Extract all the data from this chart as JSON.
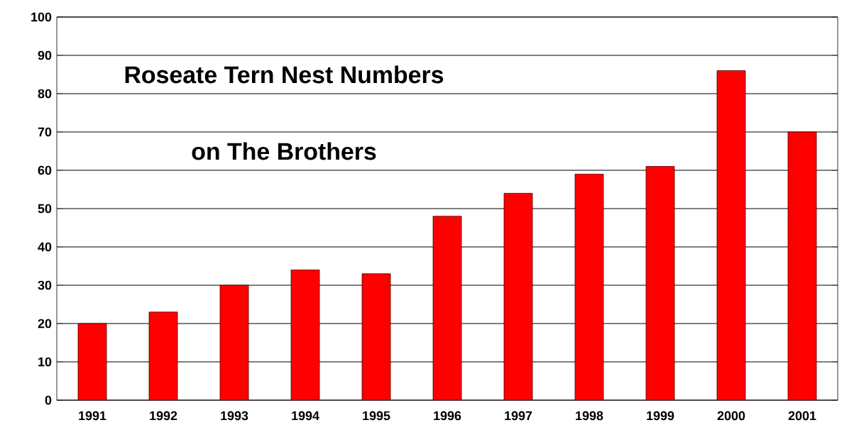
{
  "chart_data": {
    "type": "bar",
    "title": "Roseate Tern Nest Numbers",
    "subtitle": "on The Brothers",
    "categories": [
      "1991",
      "1992",
      "1993",
      "1994",
      "1995",
      "1996",
      "1997",
      "1998",
      "1999",
      "2000",
      "2001"
    ],
    "values": [
      20,
      23,
      30,
      34,
      33,
      48,
      54,
      59,
      61,
      86,
      70
    ],
    "color": "#ff0000",
    "ylim": [
      0,
      100
    ],
    "yticks": [
      0,
      10,
      20,
      30,
      40,
      50,
      60,
      70,
      80,
      90,
      100
    ],
    "grid": "y"
  }
}
